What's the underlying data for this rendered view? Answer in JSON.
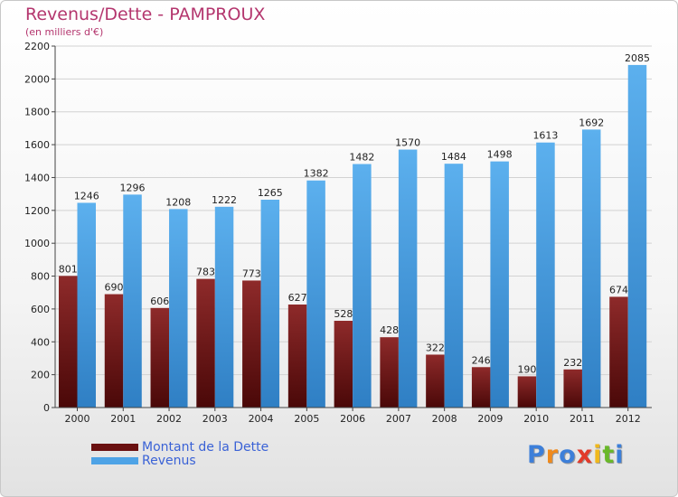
{
  "title": "Revenus/Dette - PAMPROUX",
  "subtitle": "(en milliers d'€)",
  "logo": "Proxiti",
  "colors": {
    "dette": "#7a1a1a",
    "revenus": "#4ea3e6",
    "title": "#b4366e",
    "legend_text": "#3a62d6"
  },
  "chart_data": {
    "type": "bar",
    "title": "Revenus/Dette - PAMPROUX",
    "subtitle": "(en milliers d'€)",
    "categories": [
      "2000",
      "2001",
      "2002",
      "2003",
      "2004",
      "2005",
      "2006",
      "2007",
      "2008",
      "2009",
      "2010",
      "2011",
      "2012"
    ],
    "series": [
      {
        "name": "Montant de la Dette",
        "values": [
          801,
          690,
          606,
          783,
          773,
          627,
          528,
          428,
          322,
          246,
          190,
          232,
          674
        ]
      },
      {
        "name": "Revenus",
        "values": [
          1246,
          1296,
          1208,
          1222,
          1265,
          1382,
          1482,
          1570,
          1484,
          1498,
          1613,
          1692,
          2085
        ]
      }
    ],
    "yticks": [
      0,
      200,
      400,
      600,
      800,
      1000,
      1200,
      1400,
      1600,
      1800,
      2000,
      2200
    ],
    "ylim": [
      0,
      2200
    ],
    "grid": true,
    "legend_position": "bottom-left"
  }
}
